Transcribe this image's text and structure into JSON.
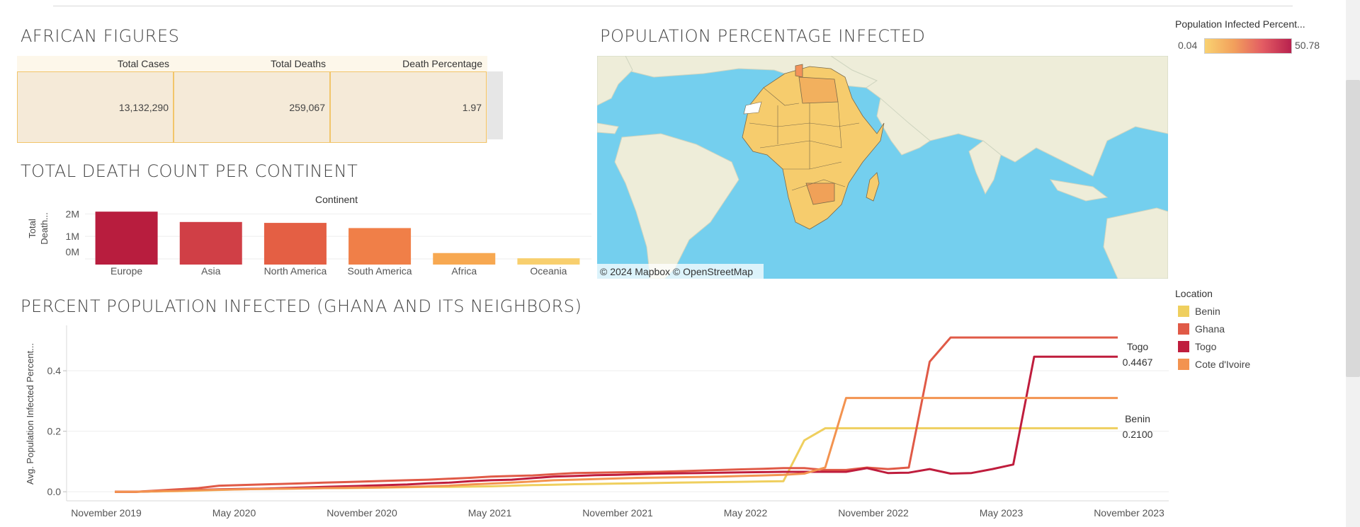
{
  "african_figures": {
    "title": "AFRICAN FIGURES",
    "headers": [
      "Total Cases",
      "Total Deaths",
      "Death Percentage"
    ],
    "values": [
      "13,132,290",
      "259,067",
      "1.97"
    ]
  },
  "death_chart": {
    "title": "TOTAL DEATH COUNT PER CONTINENT",
    "header": "Continent",
    "ylabel_line1": "Total",
    "ylabel_line2": "Death...",
    "colors": [
      "#b81d3e",
      "#d03f46",
      "#e45f44",
      "#f07f48",
      "#f7a851",
      "#f8cf6e"
    ]
  },
  "map": {
    "title": "POPULATION PERCENTAGE INFECTED",
    "attribution": "© 2024 Mapbox  © OpenStreetMap",
    "ocean_color": "#74cfee",
    "land_color": "#eeedd9",
    "africa_color": "#f6cc6d"
  },
  "gradient_legend": {
    "title": "Population Infected Percent...",
    "min": "0.04",
    "max": "50.78"
  },
  "location_legend": {
    "title": "Location",
    "items": [
      {
        "label": "Benin",
        "color": "#efcf5e"
      },
      {
        "label": "Ghana",
        "color": "#e05a47"
      },
      {
        "label": "Togo",
        "color": "#bf1d3d"
      },
      {
        "label": "Cote d'Ivoire",
        "color": "#f39350"
      }
    ]
  },
  "line_chart": {
    "title": "PERCENT POPULATION INFECTED (GHANA AND ITS NEIGHBORS)",
    "ylabel": "Avg. Population Infected Percent...",
    "mark_labels": [
      {
        "name": "Togo",
        "value": "0.4467"
      },
      {
        "name": "Benin",
        "value": "0.2100"
      }
    ]
  },
  "chart_data": [
    {
      "type": "bar",
      "header": "Continent",
      "ylabel": "Total Death...",
      "categories": [
        "Europe",
        "Asia",
        "North America",
        "South America",
        "Africa",
        "Oceania"
      ],
      "values": [
        2100000,
        1640000,
        1600000,
        1370000,
        260000,
        28000
      ],
      "yticks": [
        "0M",
        "1M",
        "2M"
      ],
      "ylim": [
        0,
        2200000
      ]
    },
    {
      "type": "line",
      "ylabel": "Avg. Population Infected Percent...",
      "xticks": [
        "November 2019",
        "May 2020",
        "November 2020",
        "May 2021",
        "November 2021",
        "May 2022",
        "November 2022",
        "May 2023",
        "November 2023"
      ],
      "yticks": [
        "0.0",
        "0.2",
        "0.4"
      ],
      "ylim": [
        -0.03,
        0.55
      ],
      "x_start": "2020-01",
      "series": [
        {
          "name": "Benin",
          "color": "#efcf5e",
          "values": [
            0.0,
            0.0,
            0.001,
            0.002,
            0.004,
            0.006,
            0.008,
            0.009,
            0.01,
            0.011,
            0.012,
            0.012,
            0.013,
            0.014,
            0.015,
            0.016,
            0.016,
            0.017,
            0.018,
            0.02,
            0.022,
            0.023,
            0.025,
            0.026,
            0.027,
            0.028,
            0.029,
            0.03,
            0.031,
            0.032,
            0.033,
            0.034,
            0.035,
            0.17,
            0.21,
            0.21,
            0.21,
            0.21,
            0.21,
            0.21,
            0.21,
            0.21,
            0.21,
            0.21,
            0.21,
            0.21,
            0.21,
            0.21,
            0.21
          ]
        },
        {
          "name": "Ghana",
          "color": "#e05a47",
          "values": [
            0.0,
            0.0,
            0.004,
            0.008,
            0.012,
            0.02,
            0.022,
            0.024,
            0.026,
            0.028,
            0.03,
            0.032,
            0.034,
            0.036,
            0.038,
            0.04,
            0.043,
            0.046,
            0.05,
            0.052,
            0.054,
            0.058,
            0.062,
            0.063,
            0.064,
            0.065,
            0.066,
            0.068,
            0.07,
            0.072,
            0.074,
            0.076,
            0.078,
            0.078,
            0.072,
            0.072,
            0.08,
            0.075,
            0.08,
            0.43,
            0.51,
            0.51,
            0.51,
            0.51,
            0.51,
            0.51,
            0.51,
            0.51,
            0.51
          ]
        },
        {
          "name": "Togo",
          "color": "#bf1d3d",
          "values": [
            0.0,
            0.0,
            0.002,
            0.004,
            0.006,
            0.008,
            0.009,
            0.01,
            0.012,
            0.014,
            0.016,
            0.018,
            0.02,
            0.022,
            0.024,
            0.028,
            0.03,
            0.035,
            0.038,
            0.04,
            0.045,
            0.05,
            0.052,
            0.055,
            0.056,
            0.058,
            0.06,
            0.061,
            0.062,
            0.063,
            0.064,
            0.065,
            0.066,
            0.066,
            0.066,
            0.066,
            0.078,
            0.062,
            0.063,
            0.075,
            0.06,
            0.062,
            0.075,
            0.09,
            0.4467,
            0.4467,
            0.4467,
            0.4467,
            0.4467
          ]
        },
        {
          "name": "Cote d'Ivoire",
          "color": "#f39350",
          "values": [
            0.0,
            0.0,
            0.002,
            0.003,
            0.005,
            0.007,
            0.008,
            0.009,
            0.01,
            0.011,
            0.012,
            0.013,
            0.014,
            0.015,
            0.016,
            0.018,
            0.02,
            0.024,
            0.027,
            0.03,
            0.034,
            0.038,
            0.04,
            0.042,
            0.044,
            0.046,
            0.047,
            0.048,
            0.049,
            0.05,
            0.052,
            0.054,
            0.056,
            0.06,
            0.08,
            0.31,
            0.31,
            0.31,
            0.31,
            0.31,
            0.31,
            0.31,
            0.31,
            0.31,
            0.31,
            0.31,
            0.31,
            0.31,
            0.31
          ]
        }
      ]
    }
  ]
}
